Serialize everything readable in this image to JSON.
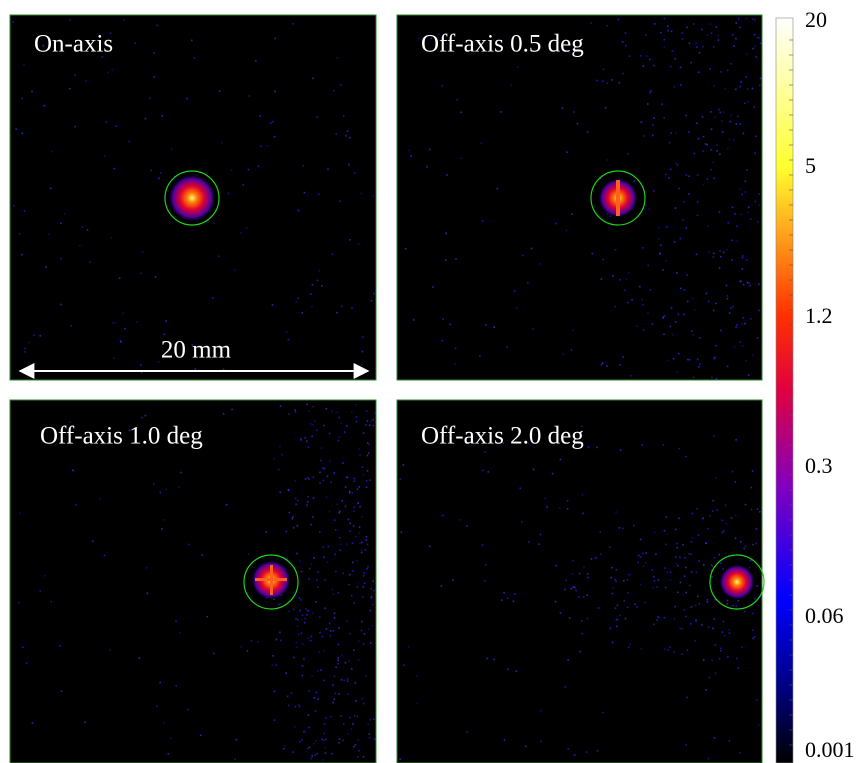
{
  "panels": [
    {
      "label": "On-axis"
    },
    {
      "label": "Off-axis 0.5 deg"
    },
    {
      "label": "Off-axis 1.0 deg"
    },
    {
      "label": "Off-axis 2.0 deg"
    }
  ],
  "scale_bar": {
    "label": "20 mm"
  },
  "colorbar": {
    "labels": [
      "20",
      "5",
      "1.2",
      "0.3",
      "0.06",
      "0.001"
    ]
  }
}
